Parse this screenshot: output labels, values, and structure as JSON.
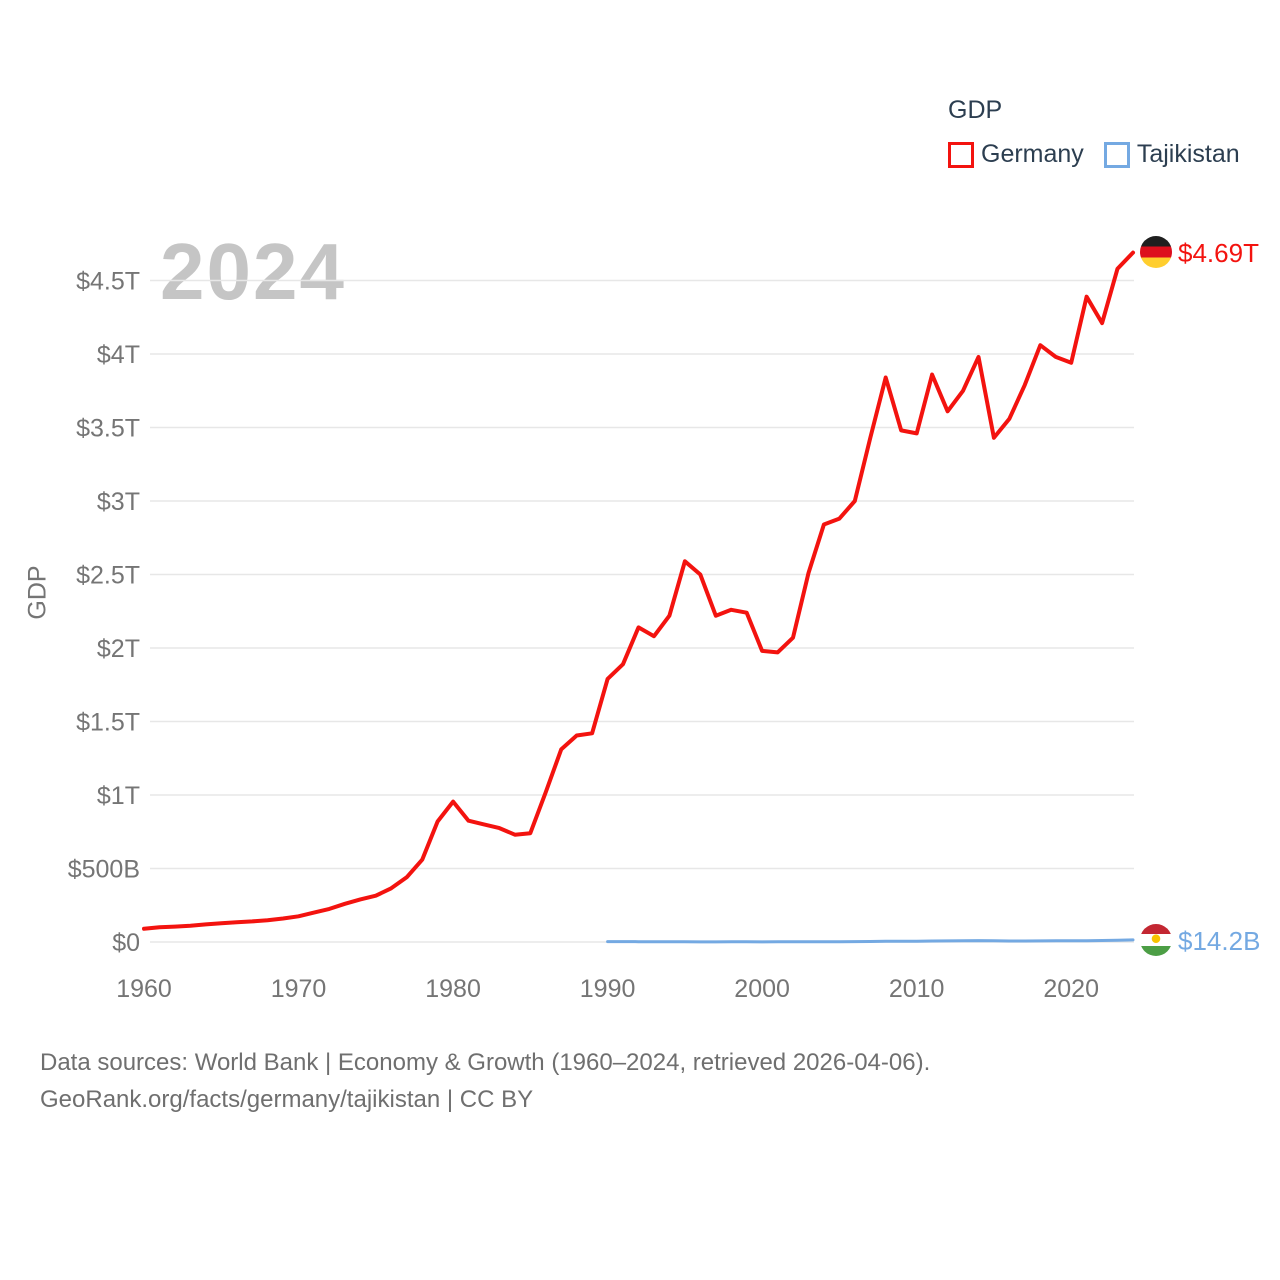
{
  "legend": {
    "title": "GDP",
    "items": [
      {
        "label": "Germany",
        "color": "#f3130f",
        "swatch_icon": "red-outline-square-icon"
      },
      {
        "label": "Tajikistan",
        "color": "#74a9e2",
        "swatch_icon": "blue-outline-square-icon"
      }
    ]
  },
  "watermark": "2024",
  "axes": {
    "y_axis_title": "GDP"
  },
  "end_labels": {
    "germany": {
      "value": "$4.69T",
      "icon": "germany-flag-icon"
    },
    "tajikistan": {
      "value": "$14.2B",
      "icon": "tajikistan-flag-icon"
    }
  },
  "footer": {
    "line1": "Data sources: World Bank | Economy & Growth (1960–2024, retrieved 2026-04-06).",
    "line2": "GeoRank.org/facts/germany/tajikistan | CC BY"
  },
  "chart_data": {
    "type": "line",
    "title": "GDP",
    "xlabel": "",
    "ylabel": "GDP",
    "unit": "USD billions",
    "x_range": [
      1960,
      2024
    ],
    "ylim_billions": [
      0,
      4750
    ],
    "grid": "horizontal",
    "legend_position": "top-right",
    "y_ticks": [
      {
        "value_b": 0,
        "label": "$0"
      },
      {
        "value_b": 500,
        "label": "$500B"
      },
      {
        "value_b": 1000,
        "label": "$1T"
      },
      {
        "value_b": 1500,
        "label": "$1.5T"
      },
      {
        "value_b": 2000,
        "label": "$2T"
      },
      {
        "value_b": 2500,
        "label": "$2.5T"
      },
      {
        "value_b": 3000,
        "label": "$3T"
      },
      {
        "value_b": 3500,
        "label": "$3.5T"
      },
      {
        "value_b": 4000,
        "label": "$4T"
      },
      {
        "value_b": 4500,
        "label": "$4.5T"
      }
    ],
    "x_ticks": [
      1960,
      1970,
      1980,
      1990,
      2000,
      2010,
      2020
    ],
    "series": [
      {
        "name": "Germany",
        "color": "#f3130f",
        "end_label": "$4.69T",
        "x": [
          1960,
          1961,
          1962,
          1963,
          1964,
          1965,
          1966,
          1967,
          1968,
          1969,
          1970,
          1971,
          1972,
          1973,
          1974,
          1975,
          1976,
          1977,
          1978,
          1979,
          1980,
          1981,
          1982,
          1983,
          1984,
          1985,
          1986,
          1987,
          1988,
          1989,
          1990,
          1991,
          1992,
          1993,
          1994,
          1995,
          1996,
          1997,
          1998,
          1999,
          2000,
          2001,
          2002,
          2003,
          2004,
          2005,
          2006,
          2007,
          2008,
          2009,
          2010,
          2011,
          2012,
          2013,
          2014,
          2015,
          2016,
          2017,
          2018,
          2019,
          2020,
          2021,
          2022,
          2023,
          2024
        ],
        "values_billions": [
          90,
          100,
          105,
          110,
          120,
          128,
          135,
          140,
          148,
          160,
          175,
          200,
          225,
          260,
          290,
          315,
          365,
          440,
          560,
          820,
          955,
          825,
          800,
          775,
          730,
          740,
          1020,
          1310,
          1405,
          1420,
          1790,
          1890,
          2140,
          2080,
          2220,
          2590,
          2500,
          2220,
          2260,
          2240,
          1980,
          1970,
          2070,
          2510,
          2840,
          2880,
          3000,
          3430,
          3840,
          3480,
          3460,
          3860,
          3610,
          3750,
          3980,
          3430,
          3560,
          3790,
          4060,
          3980,
          3940,
          4390,
          4210,
          4580,
          4690
        ]
      },
      {
        "name": "Tajikistan",
        "color": "#74a9e2",
        "end_label": "$14.2B",
        "x": [
          1990,
          1991,
          1992,
          1993,
          1994,
          1995,
          1996,
          1997,
          1998,
          1999,
          2000,
          2001,
          2002,
          2003,
          2004,
          2005,
          2006,
          2007,
          2008,
          2009,
          2010,
          2011,
          2012,
          2013,
          2014,
          2015,
          2016,
          2017,
          2018,
          2019,
          2020,
          2021,
          2022,
          2023,
          2024
        ],
        "values_billions": [
          2.6,
          2.5,
          1.9,
          2.1,
          1.8,
          1.2,
          1.0,
          0.9,
          1.3,
          1.1,
          0.9,
          1.1,
          1.2,
          1.6,
          2.1,
          2.3,
          2.8,
          3.7,
          5.2,
          5.0,
          5.6,
          6.5,
          7.6,
          8.5,
          9.2,
          8.3,
          7.0,
          7.1,
          7.8,
          8.3,
          8.1,
          8.9,
          10.5,
          12.1,
          14.2
        ]
      }
    ]
  }
}
